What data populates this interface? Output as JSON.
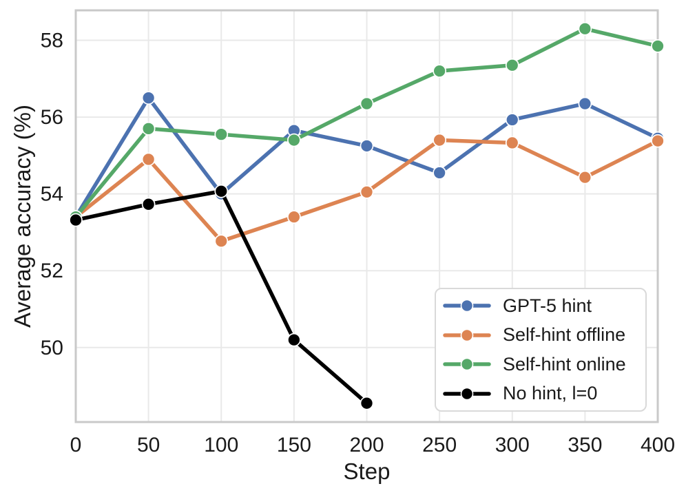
{
  "chart_data": {
    "type": "line",
    "title": "",
    "xlabel": "Step",
    "ylabel": "Average accuracy (%)",
    "xlim": [
      0,
      400
    ],
    "ylim": [
      48.06,
      58.78
    ],
    "x_ticks": [
      0,
      50,
      100,
      150,
      200,
      250,
      300,
      350,
      400
    ],
    "y_ticks": [
      50,
      52,
      54,
      56,
      58
    ],
    "grid": true,
    "legend_position": "lower right",
    "series": [
      {
        "name": "GPT-5 hint",
        "color": "#4C72B0",
        "x": [
          0,
          50,
          100,
          150,
          200,
          250,
          300,
          350,
          400
        ],
        "values": [
          53.4,
          56.5,
          54.0,
          55.65,
          55.25,
          54.55,
          55.93,
          56.35,
          55.45
        ]
      },
      {
        "name": "Self-hint offline",
        "color": "#DD8452",
        "x": [
          0,
          50,
          100,
          150,
          200,
          250,
          300,
          350,
          400
        ],
        "values": [
          53.4,
          54.9,
          52.77,
          53.4,
          54.05,
          55.4,
          55.33,
          54.43,
          55.38
        ]
      },
      {
        "name": "Self-hint online",
        "color": "#55A868",
        "x": [
          0,
          50,
          100,
          150,
          200,
          250,
          300,
          350,
          400
        ],
        "values": [
          53.4,
          55.7,
          55.55,
          55.4,
          56.35,
          57.2,
          57.35,
          58.3,
          57.85
        ]
      },
      {
        "name": "No hint, l=0",
        "color": "#000000",
        "x": [
          0,
          50,
          100,
          150,
          200
        ],
        "values": [
          53.32,
          53.73,
          54.07,
          50.2,
          48.55
        ]
      }
    ]
  },
  "style": {
    "grid_color": "#e9e9e9",
    "spine_color": "#c9c9c9",
    "tick_text_color": "#1a1a1a",
    "marker_edge_color": "#ffffff"
  }
}
